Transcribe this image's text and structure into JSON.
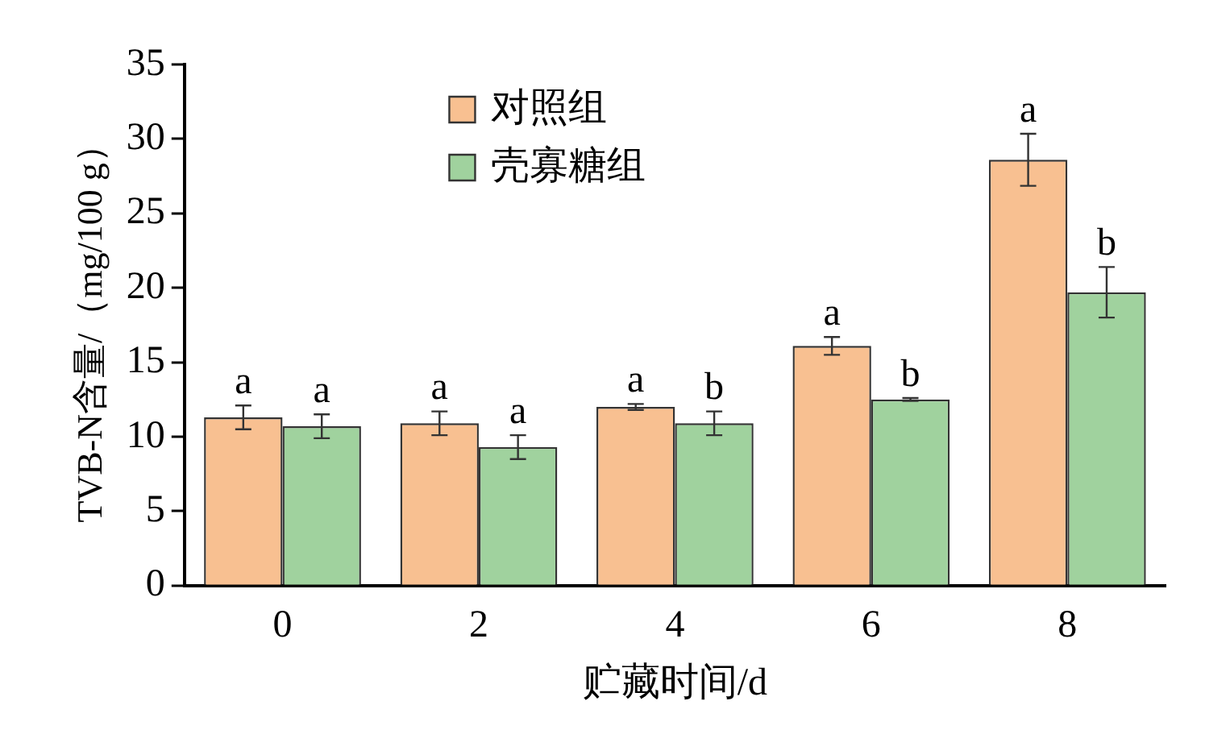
{
  "chart_data": {
    "type": "bar",
    "xlabel": "贮藏时间/d",
    "ylabel": "TVB-N含量/（mg/100 g）",
    "categories": [
      "0",
      "2",
      "4",
      "6",
      "8"
    ],
    "series": [
      {
        "name": "对照组",
        "color": "#f8c091",
        "values": [
          11.3,
          10.9,
          12.0,
          16.1,
          28.6
        ],
        "errors": [
          0.8,
          0.8,
          0.2,
          0.6,
          1.75
        ],
        "value_labels": [
          "a",
          "a",
          "a",
          "a",
          "a"
        ]
      },
      {
        "name": "壳寡糖组",
        "color": "#a0d29e",
        "values": [
          10.7,
          9.3,
          10.9,
          12.5,
          19.7
        ],
        "errors": [
          0.8,
          0.8,
          0.8,
          0.1,
          1.7
        ],
        "value_labels": [
          "a",
          "a",
          "b",
          "b",
          "b"
        ]
      }
    ],
    "ylim": [
      0,
      35
    ],
    "yticks": [
      0,
      5,
      10,
      15,
      20,
      25,
      30,
      35
    ],
    "grid": false,
    "legend": "top"
  }
}
